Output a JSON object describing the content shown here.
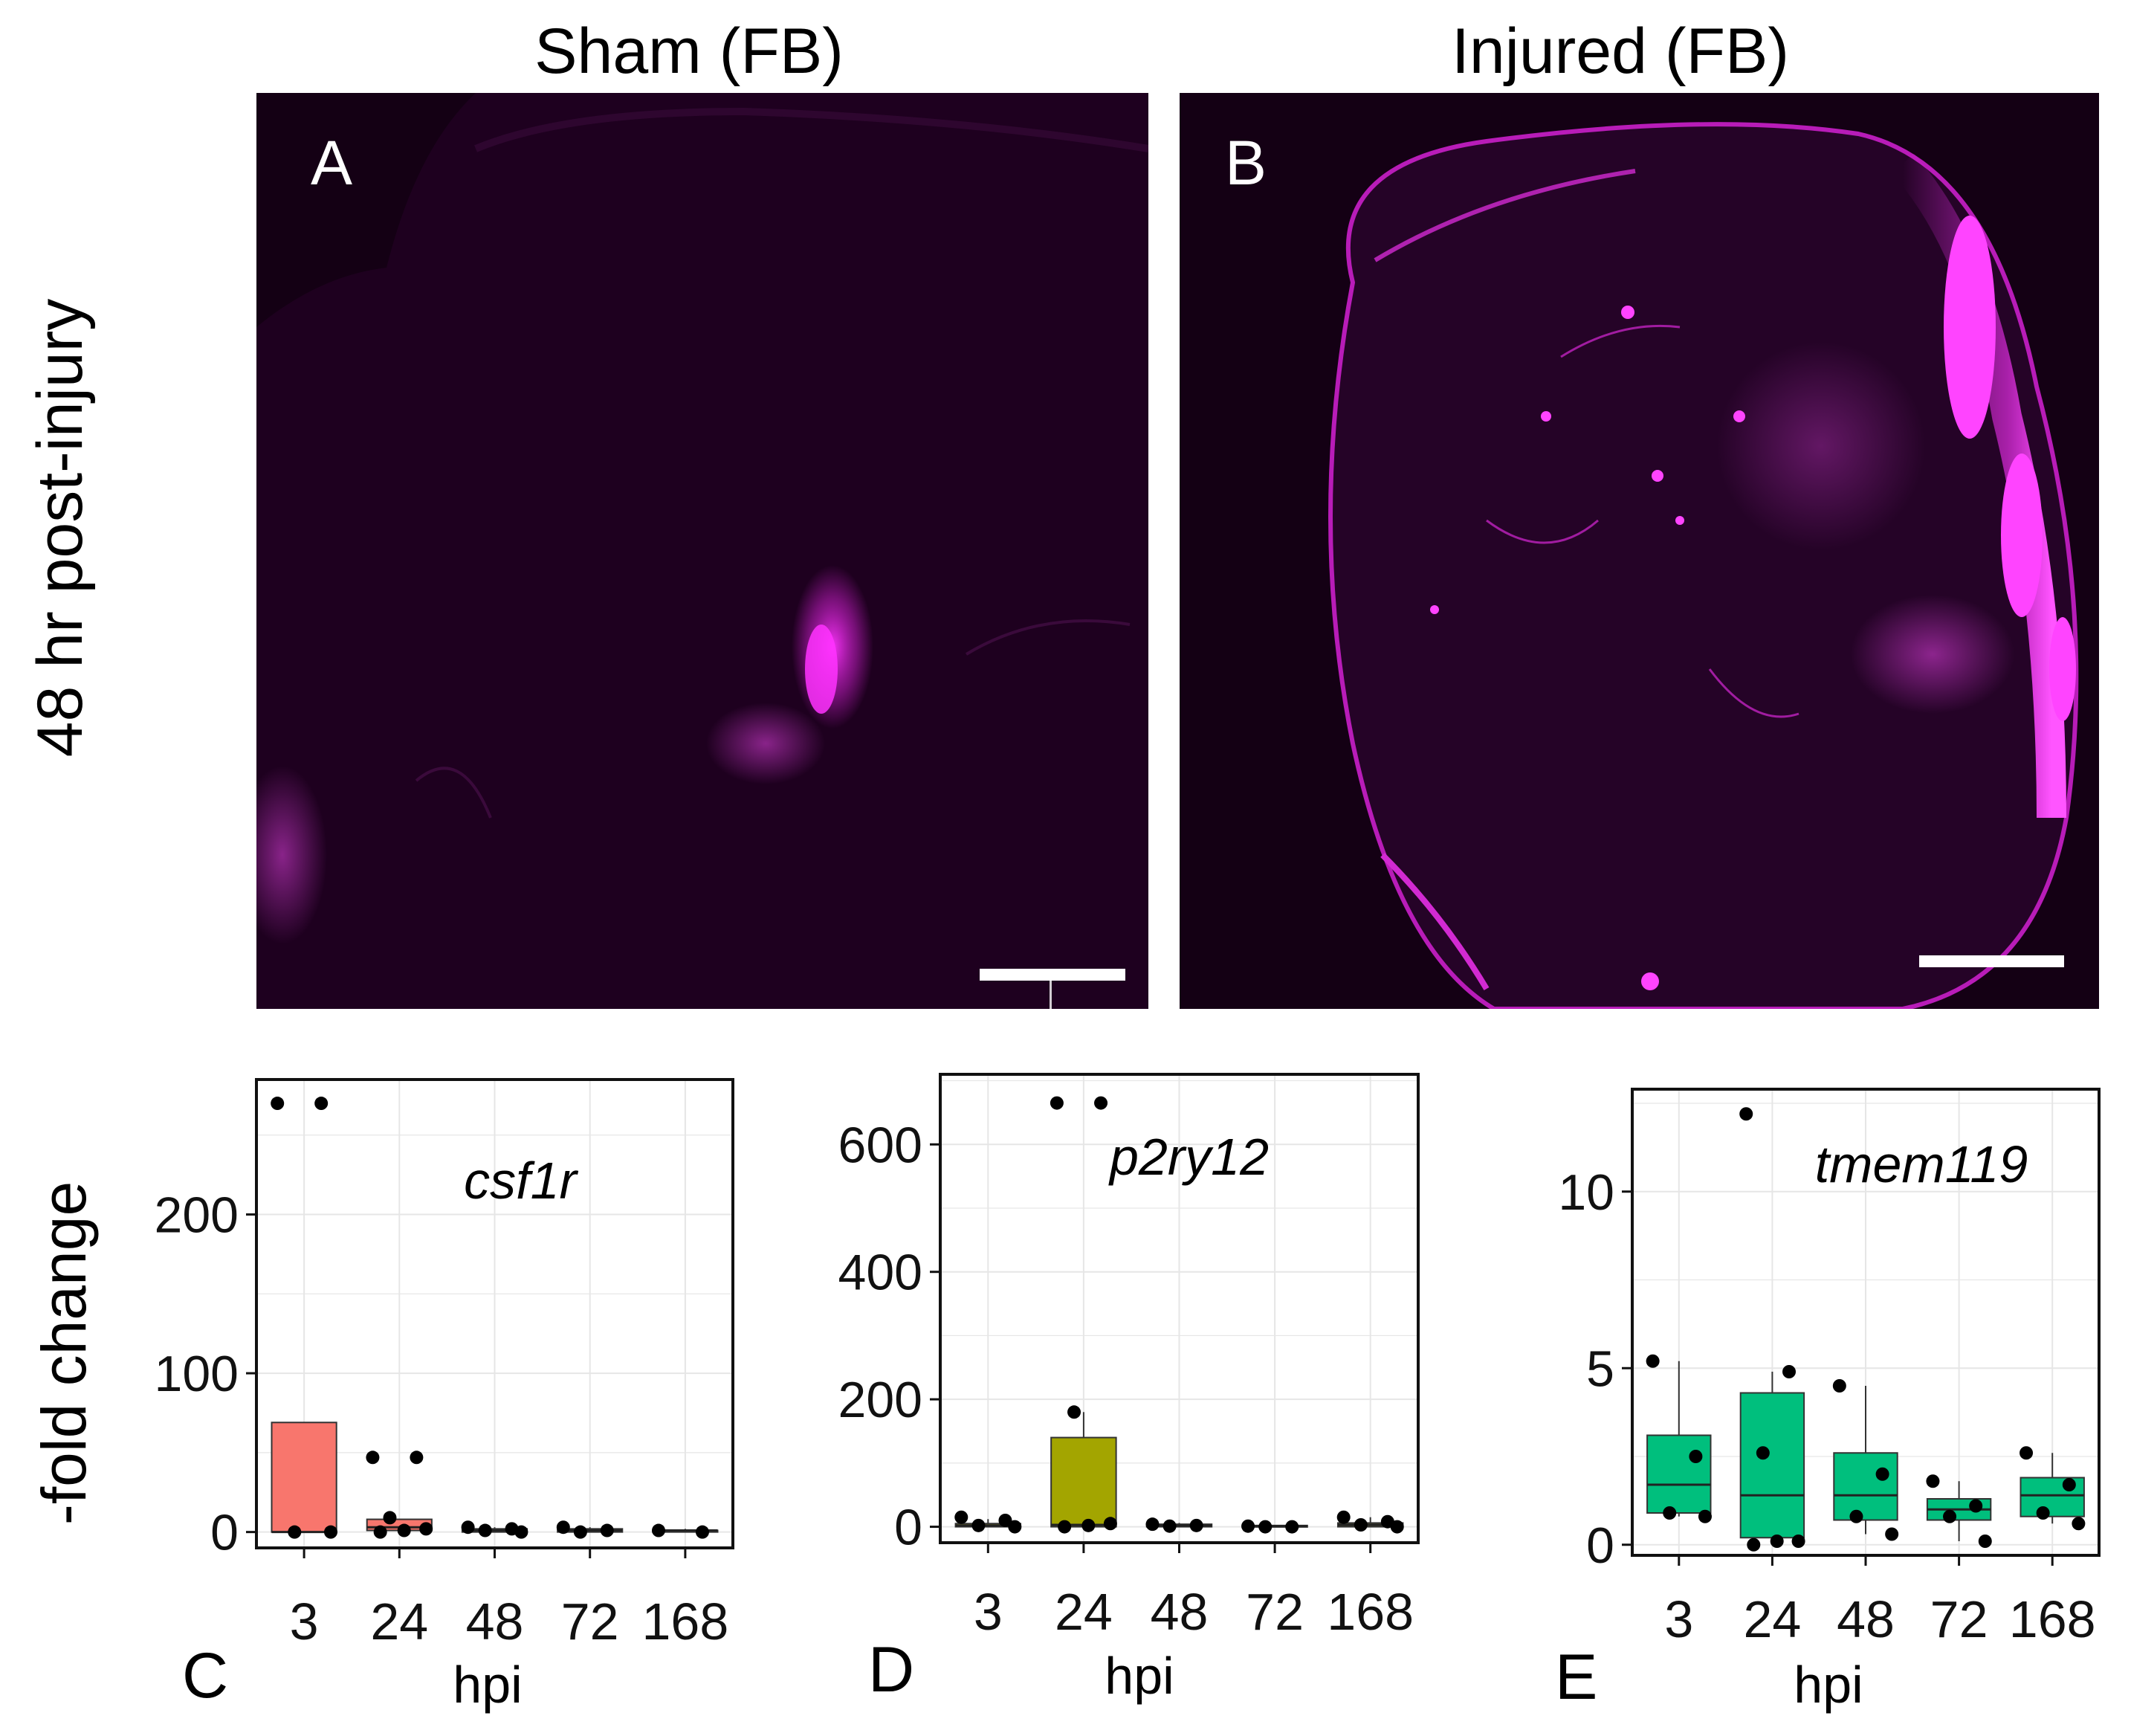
{
  "row_label": "48 hr post-injury",
  "micrographs": [
    {
      "panel": "A",
      "title": "Sham (FB)"
    },
    {
      "panel": "B",
      "title": "Injured (FB)"
    }
  ],
  "shared_ylabel": "-fold change",
  "colors": {
    "micrograph_background": "#1e001f",
    "microglia_signal": "#ff33ff",
    "csf1r_fill": "#f8766d",
    "p2ry12_fill": "#a3a500",
    "tmem119_fill": "#00bf7d",
    "points": "#000000"
  },
  "chart_data": [
    {
      "type": "box",
      "panel": "C",
      "title": "csf1r",
      "xlabel": "hpi",
      "categories": [
        "3",
        "24",
        "48",
        "72",
        "168"
      ],
      "y_ticks": [
        0,
        100,
        200
      ],
      "ylim": [
        -10,
        285
      ],
      "boxes": [
        {
          "category": "3",
          "q1": 0,
          "median": 0,
          "q3": 69,
          "whisker_low": 0,
          "whisker_high": 69
        },
        {
          "category": "24",
          "q1": 1,
          "median": 3,
          "q3": 8,
          "whisker_low": 0,
          "whisker_high": 8
        },
        {
          "category": "48",
          "q1": 0,
          "median": 1,
          "q3": 2,
          "whisker_low": 0,
          "whisker_high": 3
        },
        {
          "category": "72",
          "q1": 0,
          "median": 1,
          "q3": 2,
          "whisker_low": 0,
          "whisker_high": 3
        },
        {
          "category": "168",
          "q1": 0,
          "median": 1,
          "q3": 1,
          "whisker_low": 0,
          "whisker_high": 2
        }
      ],
      "points": [
        {
          "category": "3",
          "y": 270
        },
        {
          "category": "3",
          "y": 270
        },
        {
          "category": "3",
          "y": 0
        },
        {
          "category": "3",
          "y": 0
        },
        {
          "category": "24",
          "y": 47
        },
        {
          "category": "24",
          "y": 47
        },
        {
          "category": "24",
          "y": 9
        },
        {
          "category": "24",
          "y": 2
        },
        {
          "category": "24",
          "y": 1
        },
        {
          "category": "24",
          "y": 0
        },
        {
          "category": "48",
          "y": 3
        },
        {
          "category": "48",
          "y": 2
        },
        {
          "category": "48",
          "y": 1
        },
        {
          "category": "48",
          "y": 0
        },
        {
          "category": "72",
          "y": 3
        },
        {
          "category": "72",
          "y": 1
        },
        {
          "category": "72",
          "y": 0
        },
        {
          "category": "168",
          "y": 1
        },
        {
          "category": "168",
          "y": 0
        }
      ]
    },
    {
      "type": "box",
      "panel": "D",
      "title": "p2ry12",
      "xlabel": "hpi",
      "categories": [
        "3",
        "24",
        "48",
        "72",
        "168"
      ],
      "y_ticks": [
        0,
        200,
        400,
        600
      ],
      "ylim": [
        -25,
        710
      ],
      "boxes": [
        {
          "category": "3",
          "q1": 0,
          "median": 2,
          "q3": 5,
          "whisker_low": 0,
          "whisker_high": 12
        },
        {
          "category": "24",
          "q1": 0,
          "median": 3,
          "q3": 140,
          "whisker_low": 0,
          "whisker_high": 180
        },
        {
          "category": "48",
          "q1": 0,
          "median": 2,
          "q3": 4,
          "whisker_low": 0,
          "whisker_high": 6
        },
        {
          "category": "72",
          "q1": 0,
          "median": 1,
          "q3": 2,
          "whisker_low": 0,
          "whisker_high": 3
        },
        {
          "category": "168",
          "q1": 0,
          "median": 3,
          "q3": 6,
          "whisker_low": 0,
          "whisker_high": 15
        }
      ],
      "points": [
        {
          "category": "3",
          "y": 15
        },
        {
          "category": "3",
          "y": 10
        },
        {
          "category": "3",
          "y": 2
        },
        {
          "category": "3",
          "y": 0
        },
        {
          "category": "24",
          "y": 665
        },
        {
          "category": "24",
          "y": 665
        },
        {
          "category": "24",
          "y": 180
        },
        {
          "category": "24",
          "y": 5
        },
        {
          "category": "24",
          "y": 2
        },
        {
          "category": "24",
          "y": 0
        },
        {
          "category": "48",
          "y": 4
        },
        {
          "category": "48",
          "y": 2
        },
        {
          "category": "48",
          "y": 1
        },
        {
          "category": "72",
          "y": 1
        },
        {
          "category": "72",
          "y": 0
        },
        {
          "category": "72",
          "y": 0
        },
        {
          "category": "168",
          "y": 15
        },
        {
          "category": "168",
          "y": 8
        },
        {
          "category": "168",
          "y": 3
        },
        {
          "category": "168",
          "y": 0
        }
      ]
    },
    {
      "type": "box",
      "panel": "E",
      "title": "tmem119",
      "xlabel": "hpi",
      "categories": [
        "3",
        "24",
        "48",
        "72",
        "168"
      ],
      "y_ticks": [
        0,
        5,
        10
      ],
      "ylim": [
        -0.3,
        12.9
      ],
      "boxes": [
        {
          "category": "3",
          "q1": 0.9,
          "median": 1.7,
          "q3": 3.1,
          "whisker_low": 0.8,
          "whisker_high": 5.2
        },
        {
          "category": "24",
          "q1": 0.2,
          "median": 1.4,
          "q3": 4.3,
          "whisker_low": 0.1,
          "whisker_high": 4.9
        },
        {
          "category": "48",
          "q1": 0.7,
          "median": 1.4,
          "q3": 2.6,
          "whisker_low": 0.3,
          "whisker_high": 4.5
        },
        {
          "category": "72",
          "q1": 0.7,
          "median": 1.0,
          "q3": 1.3,
          "whisker_low": 0.1,
          "whisker_high": 1.8
        },
        {
          "category": "168",
          "q1": 0.8,
          "median": 1.4,
          "q3": 1.9,
          "whisker_low": 0.6,
          "whisker_high": 2.6
        }
      ],
      "points": [
        {
          "category": "3",
          "y": 5.2
        },
        {
          "category": "3",
          "y": 2.5
        },
        {
          "category": "3",
          "y": 0.9
        },
        {
          "category": "3",
          "y": 0.8
        },
        {
          "category": "24",
          "y": 12.2
        },
        {
          "category": "24",
          "y": 4.9
        },
        {
          "category": "24",
          "y": 2.6
        },
        {
          "category": "24",
          "y": 0.1
        },
        {
          "category": "24",
          "y": 0.1
        },
        {
          "category": "24",
          "y": 0.0
        },
        {
          "category": "48",
          "y": 4.5
        },
        {
          "category": "48",
          "y": 2.0
        },
        {
          "category": "48",
          "y": 0.8
        },
        {
          "category": "48",
          "y": 0.3
        },
        {
          "category": "72",
          "y": 1.8
        },
        {
          "category": "72",
          "y": 1.1
        },
        {
          "category": "72",
          "y": 0.8
        },
        {
          "category": "72",
          "y": 0.1
        },
        {
          "category": "168",
          "y": 2.6
        },
        {
          "category": "168",
          "y": 1.7
        },
        {
          "category": "168",
          "y": 0.9
        },
        {
          "category": "168",
          "y": 0.6
        }
      ]
    }
  ]
}
